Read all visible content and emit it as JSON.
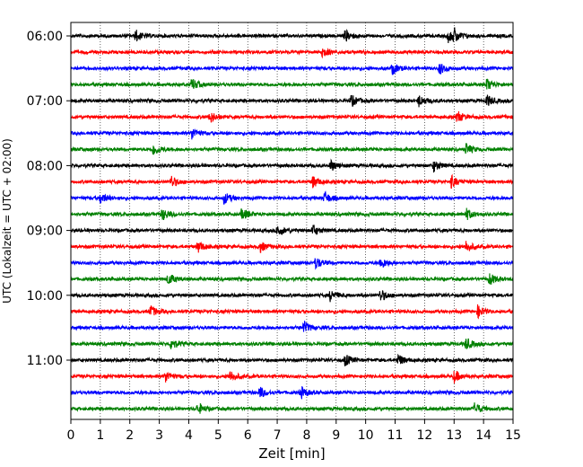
{
  "chart_data": {
    "type": "line",
    "title": "",
    "xlabel": "Zeit  [min]",
    "ylabel": "UTC (Lokalzeit = UTC + 02:00)",
    "xlim": [
      0,
      15
    ],
    "xticks": [
      0,
      1,
      2,
      3,
      4,
      5,
      6,
      7,
      8,
      9,
      10,
      11,
      12,
      13,
      14,
      15
    ],
    "x_grid": true,
    "y_tick_labels": [
      "06:00",
      "07:00",
      "08:00",
      "09:00",
      "10:00",
      "11:00"
    ],
    "colors": [
      "#000000",
      "#ff0000",
      "#0000ff",
      "#008000"
    ],
    "traces": [
      {
        "start": "06:00",
        "color": "#000000",
        "events": [
          2.2,
          9.3,
          12.8,
          13.0
        ]
      },
      {
        "start": "06:15",
        "color": "#ff0000",
        "events": [
          8.5
        ]
      },
      {
        "start": "06:30",
        "color": "#0000ff",
        "events": [
          10.9,
          12.5
        ]
      },
      {
        "start": "06:45",
        "color": "#008000",
        "events": [
          4.1,
          14.1
        ]
      },
      {
        "start": "07:00",
        "color": "#000000",
        "events": [
          9.5,
          11.8,
          14.1
        ]
      },
      {
        "start": "07:15",
        "color": "#ff0000",
        "events": [
          4.7,
          13.1
        ]
      },
      {
        "start": "07:30",
        "color": "#0000ff",
        "events": [
          4.1
        ]
      },
      {
        "start": "07:45",
        "color": "#008000",
        "events": [
          2.8,
          13.4
        ]
      },
      {
        "start": "08:00",
        "color": "#000000",
        "events": [
          8.8,
          12.3
        ]
      },
      {
        "start": "08:15",
        "color": "#ff0000",
        "events": [
          3.4,
          8.2,
          12.9
        ]
      },
      {
        "start": "08:30",
        "color": "#0000ff",
        "events": [
          1.0,
          5.2,
          8.6
        ]
      },
      {
        "start": "08:45",
        "color": "#008000",
        "events": [
          3.1,
          5.8,
          13.4
        ]
      },
      {
        "start": "09:00",
        "color": "#000000",
        "events": [
          7.0,
          8.2
        ]
      },
      {
        "start": "09:15",
        "color": "#ff0000",
        "events": [
          4.3,
          6.4,
          13.4
        ]
      },
      {
        "start": "09:30",
        "color": "#0000ff",
        "events": [
          8.3,
          10.5
        ]
      },
      {
        "start": "09:45",
        "color": "#008000",
        "events": [
          3.3,
          14.2
        ]
      },
      {
        "start": "10:00",
        "color": "#000000",
        "events": [
          8.8,
          10.5
        ]
      },
      {
        "start": "10:15",
        "color": "#ff0000",
        "events": [
          2.7,
          13.8
        ]
      },
      {
        "start": "10:30",
        "color": "#0000ff",
        "events": [
          7.9
        ]
      },
      {
        "start": "10:45",
        "color": "#008000",
        "events": [
          3.4,
          13.4
        ]
      },
      {
        "start": "11:00",
        "color": "#000000",
        "events": [
          9.3,
          11.1
        ]
      },
      {
        "start": "11:15",
        "color": "#ff0000",
        "events": [
          3.2,
          5.4,
          13.0
        ]
      },
      {
        "start": "11:30",
        "color": "#0000ff",
        "events": [
          6.4,
          7.8
        ]
      },
      {
        "start": "11:45",
        "color": "#008000",
        "events": [
          4.3,
          13.7
        ]
      }
    ]
  }
}
